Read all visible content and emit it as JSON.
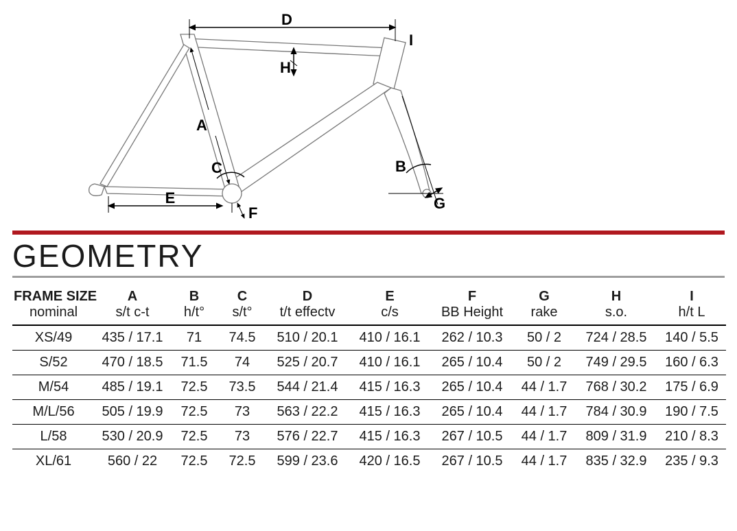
{
  "colors": {
    "red": "#b0181f",
    "grey": "#9e9e9e",
    "line": "#000000",
    "tubeOutline": "#777777",
    "bg": "#ffffff"
  },
  "diagram": {
    "labels": {
      "A": "A",
      "B": "B",
      "C": "C",
      "D": "D",
      "E": "E",
      "F": "F",
      "G": "G",
      "H": "H",
      "I": "I"
    },
    "fontSize": 22,
    "lineWidth": 1.5,
    "arrowSize": 7
  },
  "title": "GEOMETRY",
  "table": {
    "columns": [
      {
        "l1": "FRAME SIZE",
        "l2": "nominal"
      },
      {
        "l1": "A",
        "l2": "s/t c-t"
      },
      {
        "l1": "B",
        "l2": "h/t°"
      },
      {
        "l1": "C",
        "l2": "s/t°"
      },
      {
        "l1": "D",
        "l2": "t/t effectv"
      },
      {
        "l1": "E",
        "l2": "c/s"
      },
      {
        "l1": "F",
        "l2": "BB Height"
      },
      {
        "l1": "G",
        "l2": "rake"
      },
      {
        "l1": "H",
        "l2": "s.o."
      },
      {
        "l1": "I",
        "l2": "h/t L"
      }
    ],
    "rows": [
      [
        "XS/49",
        "435 / 17.1",
        "71",
        "74.5",
        "510 / 20.1",
        "410 / 16.1",
        "262 / 10.3",
        "50 / 2",
        "724 / 28.5",
        "140 / 5.5"
      ],
      [
        "S/52",
        "470 / 18.5",
        "71.5",
        "74",
        "525 / 20.7",
        "410 / 16.1",
        "265 / 10.4",
        "50 / 2",
        "749 / 29.5",
        "160 / 6.3"
      ],
      [
        "M/54",
        "485 / 19.1",
        "72.5",
        "73.5",
        "544 / 21.4",
        "415 / 16.3",
        "265 / 10.4",
        "44 / 1.7",
        "768 / 30.2",
        "175 / 6.9"
      ],
      [
        "M/L/56",
        "505 / 19.9",
        "72.5",
        "73",
        "563 / 22.2",
        "415 / 16.3",
        "265 / 10.4",
        "44 / 1.7",
        "784 / 30.9",
        "190 / 7.5"
      ],
      [
        "L/58",
        "530 / 20.9",
        "72.5",
        "73",
        "576 / 22.7",
        "415 / 16.3",
        "267 / 10.5",
        "44 / 1.7",
        "809 / 31.9",
        "210 / 8.3"
      ],
      [
        "XL/61",
        "560 / 22",
        "72.5",
        "72.5",
        "599 / 23.6",
        "420 / 16.5",
        "267 / 10.5",
        "44 / 1.7",
        "835 / 32.9",
        "235 / 9.3"
      ]
    ]
  }
}
